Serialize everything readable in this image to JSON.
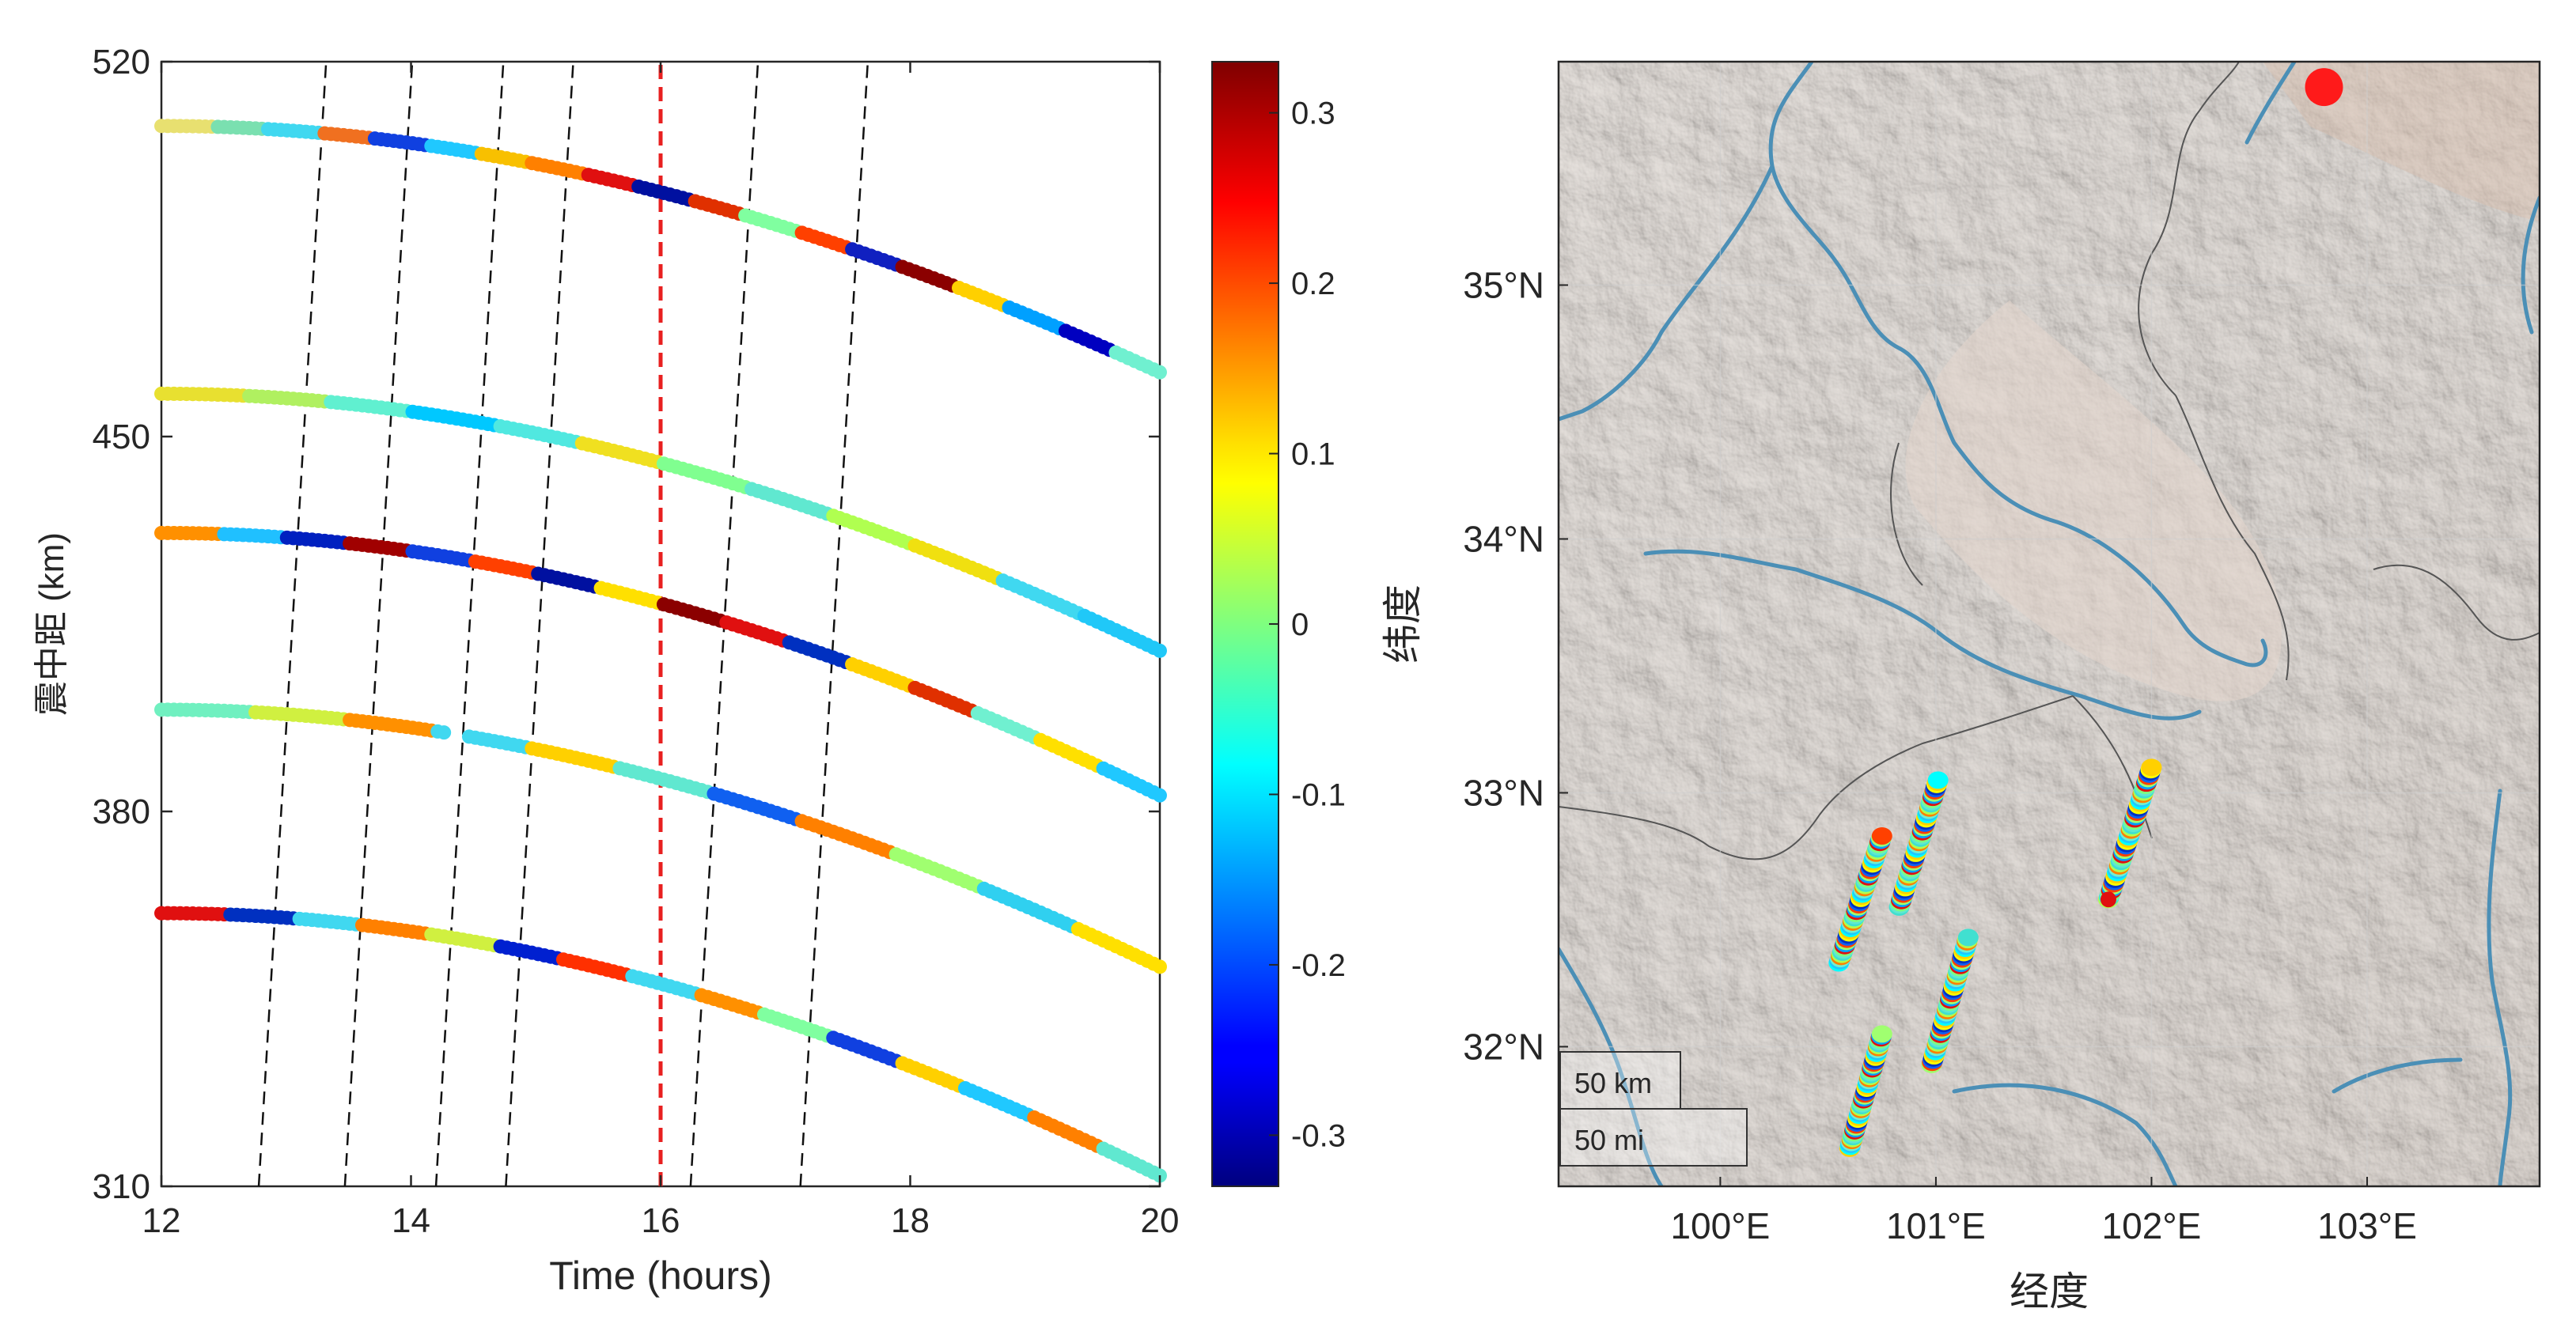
{
  "chart_data": [
    {
      "type": "scatter",
      "xlabel": "Time (hours)",
      "ylabel": "震中距 (km)",
      "xlim": [
        12,
        20
      ],
      "ylim": [
        310,
        520
      ],
      "xticks": [
        "12",
        "14",
        "16",
        "18",
        "20"
      ],
      "yticks": [
        "310",
        "380",
        "450",
        "520"
      ],
      "series": [
        {
          "y_start": 508,
          "y_end": 462,
          "colors": [
            "#e8e070",
            "#7ae0b0",
            "#40d8f0",
            "#f07020",
            "#1040e0",
            "#20c8ff",
            "#f8c000",
            "#ff8000",
            "#e01010",
            "#0010a0",
            "#e03000",
            "#80ffa0",
            "#ff4000",
            "#1020c0",
            "#8b0000",
            "#ffd000",
            "#00a0ff",
            "#0000c0",
            "#70f0d0"
          ]
        },
        {
          "y_start": 458,
          "y_end": 410,
          "colors": [
            "#e8e030",
            "#b0f060",
            "#60f0d0",
            "#00c8ff",
            "#50e8e0",
            "#f0e020",
            "#80ff90",
            "#60e8d0",
            "#b0ff50",
            "#f0e010",
            "#40d8f0",
            "#20c8f8"
          ]
        },
        {
          "y_start": 432,
          "y_end": 383,
          "colors": [
            "#ff9000",
            "#20c0ff",
            "#0020c0",
            "#a00000",
            "#1040e0",
            "#ff4000",
            "#0010a0",
            "#ffe000",
            "#8b0000",
            "#e01010",
            "#0030c0",
            "#ffd000",
            "#e03000",
            "#70f0d0",
            "#ffe000",
            "#20c8ff"
          ]
        },
        {
          "y_start": 399,
          "y_end": 351,
          "colors": [
            "#70f0c0",
            "#d0f040",
            "#ff9000",
            "#40d8f0",
            "#ffd000",
            "#60e8d0",
            "#1060f0",
            "#ff8000",
            "#a0ff70",
            "#30d0f0",
            "#ffe000"
          ]
        },
        {
          "y_start": 361,
          "y_end": 312,
          "colors": [
            "#e01010",
            "#0030c0",
            "#40d8f0",
            "#ff8000",
            "#d0f040",
            "#0020d0",
            "#ff3000",
            "#40d8f0",
            "#ff9000",
            "#80ffa0",
            "#1040e0",
            "#ffd000",
            "#20c8ff",
            "#ff8000",
            "#60e8d0"
          ]
        }
      ],
      "dashed_lines": [
        {
          "x_bottom": 12.78,
          "x_top": 13.32,
          "color": "black"
        },
        {
          "x_bottom": 13.47,
          "x_top": 14.01,
          "color": "black"
        },
        {
          "x_bottom": 14.2,
          "x_top": 14.74,
          "color": "black"
        },
        {
          "x_bottom": 14.76,
          "x_top": 15.3,
          "color": "black"
        },
        {
          "x_bottom": 16.24,
          "x_top": 16.78,
          "color": "black"
        },
        {
          "x_bottom": 17.12,
          "x_top": 17.66,
          "color": "black"
        },
        {
          "x_bottom": 16.0,
          "x_top": 16.0,
          "color": "red"
        }
      ]
    },
    {
      "type": "colorbar",
      "range": [
        -0.33,
        0.33
      ],
      "ticks": [
        "0.3",
        "0.2",
        "0.1",
        "0",
        "-0.1",
        "-0.2",
        "-0.3"
      ],
      "tick_values": [
        0.3,
        0.2,
        0.1,
        0,
        -0.1,
        -0.2,
        -0.3
      ],
      "colormap": "jet"
    },
    {
      "type": "map",
      "xlabel": "经度",
      "ylabel": "纬度",
      "xlim": [
        99.25,
        103.8
      ],
      "ylim": [
        31.45,
        35.88
      ],
      "xticks": [
        "100°E",
        "101°E",
        "102°E",
        "103°E"
      ],
      "xtick_values": [
        100,
        101,
        102,
        103
      ],
      "yticks": [
        "35°N",
        "34°N",
        "33°N",
        "32°N"
      ],
      "ytick_values": [
        35,
        34,
        33,
        32
      ],
      "scale_labels": [
        "50 km",
        "50 mi"
      ],
      "epicenter": {
        "lon": 102.8,
        "lat": 35.78,
        "color": "red"
      },
      "tracks": [
        {
          "lon_start": 100.55,
          "lat_start": 32.33,
          "lon_end": 100.75,
          "lat_end": 32.83
        },
        {
          "lon_start": 100.83,
          "lat_start": 32.55,
          "lon_end": 101.01,
          "lat_end": 33.05
        },
        {
          "lon_start": 100.98,
          "lat_start": 31.93,
          "lon_end": 101.15,
          "lat_end": 32.43
        },
        {
          "lon_start": 100.6,
          "lat_start": 31.6,
          "lon_end": 100.75,
          "lat_end": 32.05
        },
        {
          "lon_start": 101.8,
          "lat_start": 32.58,
          "lon_end": 102.0,
          "lat_end": 33.1
        }
      ],
      "track_end_red": {
        "lon": 101.8,
        "lat": 32.58
      }
    }
  ]
}
